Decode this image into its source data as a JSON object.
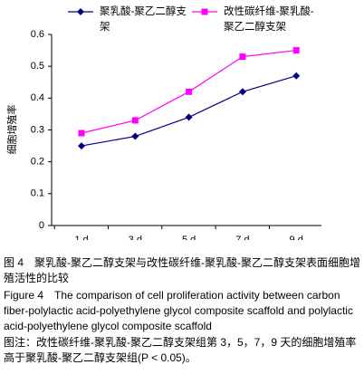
{
  "chart_data": {
    "type": "line",
    "y_label": "细胞增殖率",
    "categories": [
      "1 d",
      "3 d",
      "5 d",
      "7 d",
      "9 d"
    ],
    "series": [
      {
        "name": "聚乳酸-聚乙二醇支架",
        "color": "#000080",
        "marker": "diamond",
        "values": [
          0.25,
          0.28,
          0.34,
          0.42,
          0.47
        ]
      },
      {
        "name": "改性碳纤维-聚乳酸-聚乙二醇支架",
        "color": "#ff00ff",
        "marker": "square",
        "values": [
          0.29,
          0.33,
          0.42,
          0.53,
          0.55
        ]
      }
    ],
    "ylim": [
      0,
      0.6
    ],
    "yticks": [
      0,
      0.1,
      0.2,
      0.3,
      0.4,
      0.5,
      0.6
    ],
    "grid": false
  },
  "caption_zh": "图 4　聚乳酸-聚乙二醇支架与改性碳纤维-聚乳酸-聚乙二醇支架表面细胞增殖活性的比较",
  "caption_en": "Figure 4　The comparison of cell proliferation activity between carbon fiber-polylactic acid-polyethylene glycol composite scaffold and polylactic acid-polyethylene glycol composite scaffold",
  "note": "图注：改性碳纤维-聚乳酸-聚乙二醇支架组第 3，5，7，9 天的细胞增殖率高于聚乳酸-聚乙二醇支架组(P < 0.05)。"
}
